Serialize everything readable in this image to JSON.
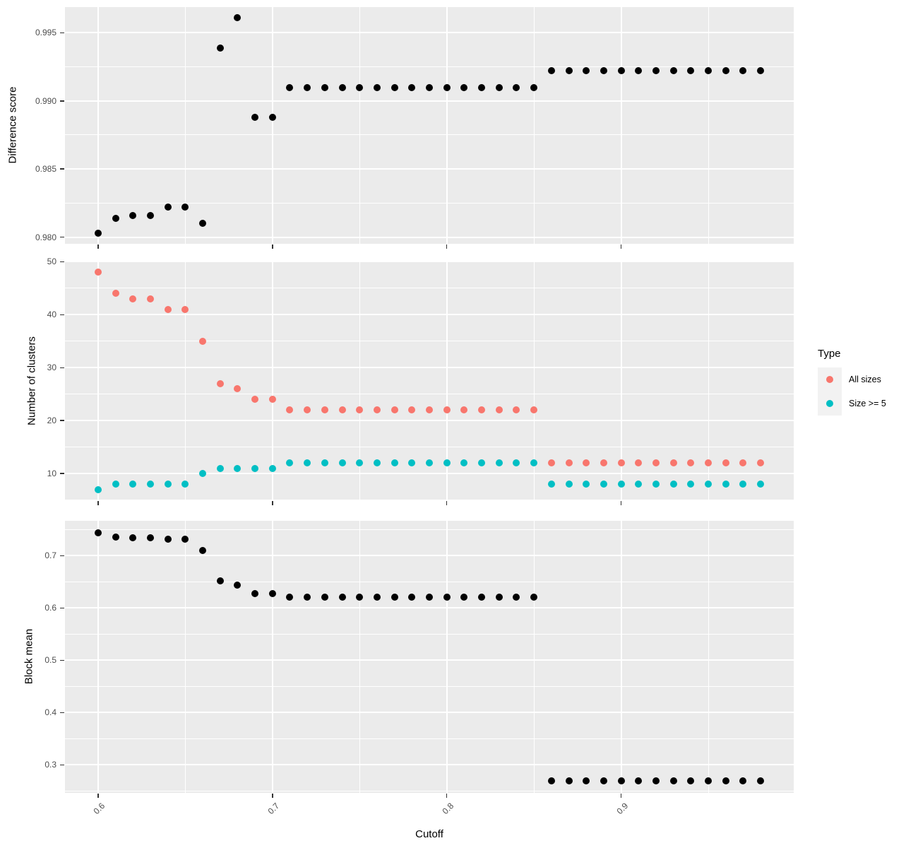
{
  "x_axis": {
    "label": "Cutoff",
    "lim": [
      0.581,
      0.999
    ],
    "ticks": [
      0.6,
      0.7,
      0.8,
      0.9
    ],
    "tick_labels": [
      "0.6",
      "0.7",
      "0.8",
      "0.9"
    ],
    "minor_ticks": [
      0.65,
      0.75,
      0.85,
      0.95
    ]
  },
  "legend": {
    "title": "Type",
    "entries": [
      {
        "label": "All sizes",
        "color": "#F8766D"
      },
      {
        "label": "Size >= 5",
        "color": "#00BFC4"
      }
    ]
  },
  "colors": {
    "panel_background": "#EBEBEB",
    "gridline": "#FFFFFF",
    "tick_text": "#4D4D4D",
    "point_black": "#000000",
    "series_all_sizes": "#F8766D",
    "series_size_ge5": "#00BFC4"
  },
  "chart_data": [
    {
      "type": "scatter",
      "ylabel": "Difference score",
      "xlabel": "Cutoff",
      "ylim": [
        0.97951,
        0.99689
      ],
      "yticks": [
        0.98,
        0.985,
        0.99,
        0.995
      ],
      "ytick_labels": [
        "0.980",
        "0.985",
        "0.990",
        "0.995"
      ],
      "yminor": [
        0.9825,
        0.9875,
        0.9925
      ],
      "grid": "on",
      "x": [
        0.6,
        0.61,
        0.62,
        0.63,
        0.64,
        0.65,
        0.66,
        0.67,
        0.68,
        0.69,
        0.7,
        0.71,
        0.72,
        0.73,
        0.74,
        0.75,
        0.76,
        0.77,
        0.78,
        0.79,
        0.8,
        0.81,
        0.82,
        0.83,
        0.84,
        0.85,
        0.86,
        0.87,
        0.88,
        0.89,
        0.9,
        0.91,
        0.92,
        0.93,
        0.94,
        0.95,
        0.96,
        0.97,
        0.98
      ],
      "series": [
        {
          "name": "Difference score",
          "color": "#000000",
          "values": [
            0.9803,
            0.9814,
            0.9816,
            0.9816,
            0.9822,
            0.9822,
            0.981,
            0.9939,
            0.9961,
            0.9888,
            0.9888,
            0.991,
            0.991,
            0.991,
            0.991,
            0.991,
            0.991,
            0.991,
            0.991,
            0.991,
            0.991,
            0.991,
            0.991,
            0.991,
            0.991,
            0.991,
            0.9922,
            0.9922,
            0.9922,
            0.9922,
            0.9922,
            0.9922,
            0.9922,
            0.9922,
            0.9922,
            0.9922,
            0.9922,
            0.9922,
            0.9922
          ]
        }
      ]
    },
    {
      "type": "scatter",
      "ylabel": "Number of clusters",
      "xlabel": "Cutoff",
      "ylim": [
        4.95,
        50.05
      ],
      "yticks": [
        10,
        20,
        30,
        40,
        50
      ],
      "ytick_labels": [
        "10",
        "20",
        "30",
        "40",
        "50"
      ],
      "yminor": [
        5,
        15,
        25,
        35,
        45
      ],
      "grid": "on",
      "x": [
        0.6,
        0.61,
        0.62,
        0.63,
        0.64,
        0.65,
        0.66,
        0.67,
        0.68,
        0.69,
        0.7,
        0.71,
        0.72,
        0.73,
        0.74,
        0.75,
        0.76,
        0.77,
        0.78,
        0.79,
        0.8,
        0.81,
        0.82,
        0.83,
        0.84,
        0.85,
        0.86,
        0.87,
        0.88,
        0.89,
        0.9,
        0.91,
        0.92,
        0.93,
        0.94,
        0.95,
        0.96,
        0.97,
        0.98
      ],
      "series": [
        {
          "name": "All sizes",
          "color": "#F8766D",
          "values": [
            48,
            44,
            43,
            43,
            41,
            41,
            35,
            27,
            26,
            24,
            24,
            22,
            22,
            22,
            22,
            22,
            22,
            22,
            22,
            22,
            22,
            22,
            22,
            22,
            22,
            22,
            12,
            12,
            12,
            12,
            12,
            12,
            12,
            12,
            12,
            12,
            12,
            12,
            12
          ]
        },
        {
          "name": "Size >= 5",
          "color": "#00BFC4",
          "values": [
            7,
            8,
            8,
            8,
            8,
            8,
            10,
            11,
            11,
            11,
            11,
            12,
            12,
            12,
            12,
            12,
            12,
            12,
            12,
            12,
            12,
            12,
            12,
            12,
            12,
            12,
            8,
            8,
            8,
            8,
            8,
            8,
            8,
            8,
            8,
            8,
            8,
            8,
            8
          ]
        }
      ]
    },
    {
      "type": "scatter",
      "ylabel": "Block mean",
      "xlabel": "Cutoff",
      "ylim": [
        0.2464,
        0.7666
      ],
      "yticks": [
        0.3,
        0.4,
        0.5,
        0.6,
        0.7
      ],
      "ytick_labels": [
        "0.3",
        "0.4",
        "0.5",
        "0.6",
        "0.7"
      ],
      "yminor": [
        0.25,
        0.35,
        0.45,
        0.55,
        0.65,
        0.75
      ],
      "grid": "on",
      "x": [
        0.6,
        0.61,
        0.62,
        0.63,
        0.64,
        0.65,
        0.66,
        0.67,
        0.68,
        0.69,
        0.7,
        0.71,
        0.72,
        0.73,
        0.74,
        0.75,
        0.76,
        0.77,
        0.78,
        0.79,
        0.8,
        0.81,
        0.82,
        0.83,
        0.84,
        0.85,
        0.86,
        0.87,
        0.88,
        0.89,
        0.9,
        0.91,
        0.92,
        0.93,
        0.94,
        0.95,
        0.96,
        0.97,
        0.98
      ],
      "series": [
        {
          "name": "Block mean",
          "color": "#000000",
          "values": [
            0.743,
            0.736,
            0.734,
            0.734,
            0.732,
            0.732,
            0.71,
            0.652,
            0.643,
            0.627,
            0.627,
            0.62,
            0.62,
            0.62,
            0.62,
            0.62,
            0.62,
            0.62,
            0.62,
            0.62,
            0.62,
            0.62,
            0.62,
            0.62,
            0.62,
            0.62,
            0.27,
            0.27,
            0.27,
            0.27,
            0.27,
            0.27,
            0.27,
            0.27,
            0.27,
            0.27,
            0.27,
            0.27,
            0.27
          ]
        }
      ]
    }
  ]
}
